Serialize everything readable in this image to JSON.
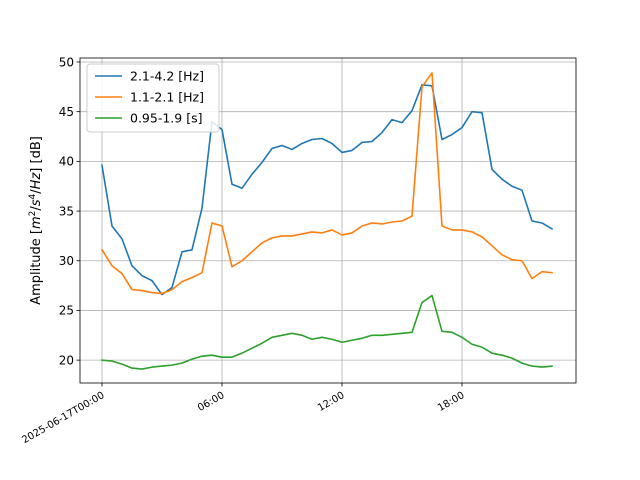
{
  "chart_data": {
    "type": "line",
    "title": "",
    "xlabel": "",
    "ylabel_parts": [
      "Amplitude [",
      "m",
      "2",
      "/",
      "s",
      "4",
      "/",
      "Hz",
      "] [dB]"
    ],
    "x_ticks": [
      {
        "hour": 0,
        "label": "2025-06-17T00:00"
      },
      {
        "hour": 6,
        "label": "06:00"
      },
      {
        "hour": 12,
        "label": "12:00"
      },
      {
        "hour": 18,
        "label": "18:00"
      }
    ],
    "xlim": [
      -1.1,
      23.7
    ],
    "ylim": [
      17.7,
      50.4
    ],
    "y_ticks": [
      20,
      25,
      30,
      35,
      40,
      45,
      50
    ],
    "grid": true,
    "legend_position": "upper-left",
    "x": [
      0,
      0.5,
      1,
      1.5,
      2,
      2.5,
      3,
      3.5,
      4,
      4.5,
      5,
      5.5,
      6,
      6.5,
      7,
      7.5,
      8,
      8.5,
      9,
      9.5,
      10,
      10.5,
      11,
      11.5,
      12,
      12.5,
      13,
      13.5,
      14,
      14.5,
      15,
      15.5,
      16,
      16.5,
      17,
      17.5,
      18,
      18.5,
      19,
      19.5,
      20,
      20.5,
      21,
      21.5,
      22,
      22.5
    ],
    "series": [
      {
        "name": "2.1-4.2 [Hz]",
        "color": "#1f77b4",
        "values": [
          39.6,
          33.5,
          32.2,
          29.5,
          28.5,
          28.0,
          26.6,
          27.3,
          30.9,
          31.1,
          35.3,
          44.0,
          43.2,
          37.7,
          37.3,
          38.7,
          39.9,
          41.3,
          41.6,
          41.2,
          41.8,
          42.2,
          42.3,
          41.8,
          40.9,
          41.1,
          41.9,
          42.0,
          42.9,
          44.2,
          43.9,
          45.1,
          47.7,
          47.6,
          42.2,
          42.7,
          43.4,
          45.0,
          44.9,
          39.2,
          38.2,
          37.5,
          37.1,
          34.0,
          33.8,
          33.2
        ]
      },
      {
        "name": "1.1-2.1 [Hz]",
        "color": "#ff7f0e",
        "values": [
          31.1,
          29.5,
          28.7,
          27.1,
          27.0,
          26.8,
          26.7,
          27.1,
          27.9,
          28.3,
          28.8,
          33.8,
          33.5,
          29.4,
          30.0,
          30.9,
          31.8,
          32.3,
          32.5,
          32.5,
          32.7,
          32.9,
          32.8,
          33.1,
          32.6,
          32.8,
          33.5,
          33.8,
          33.7,
          33.9,
          34.0,
          34.5,
          47.5,
          48.9,
          33.5,
          33.1,
          33.1,
          32.9,
          32.4,
          31.5,
          30.6,
          30.1,
          30.0,
          28.2,
          28.9,
          28.8
        ]
      },
      {
        "name": "0.95-1.9 [s]",
        "color": "#2ca02c",
        "values": [
          20.0,
          19.9,
          19.6,
          19.2,
          19.1,
          19.3,
          19.4,
          19.5,
          19.7,
          20.1,
          20.4,
          20.5,
          20.3,
          20.3,
          20.7,
          21.2,
          21.7,
          22.3,
          22.5,
          22.7,
          22.5,
          22.1,
          22.3,
          22.1,
          21.8,
          22.0,
          22.2,
          22.5,
          22.5,
          22.6,
          22.7,
          22.8,
          25.8,
          26.5,
          22.9,
          22.8,
          22.3,
          21.6,
          21.3,
          20.7,
          20.5,
          20.2,
          19.7,
          19.4,
          19.3,
          19.4
        ]
      }
    ]
  }
}
